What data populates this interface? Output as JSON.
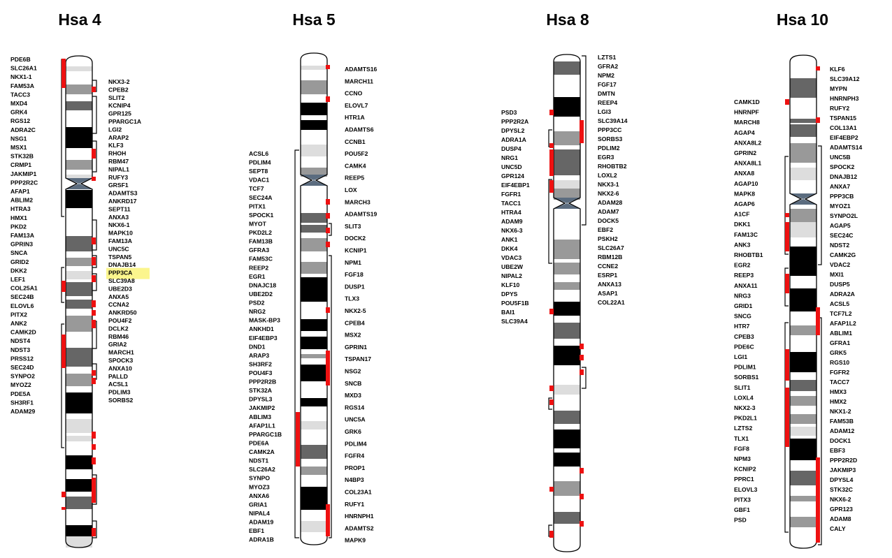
{
  "colors": {
    "marker": "#ee1111",
    "highlight": "#fbf58d",
    "band_black": "#000000",
    "band_dark": "#666666",
    "band_mid": "#999999",
    "band_light": "#dddddd",
    "centromere": "#5b6c7f"
  },
  "chromosomes": [
    {
      "title": "Hsa 4",
      "left_genes": [
        "PDE6B",
        "SLC26A1",
        "NKX1-1",
        "FAM53A",
        "TACC3",
        "MXD4",
        "GRK4",
        "RGS12",
        "ADRA2C",
        "NSG1",
        "MSX1",
        "STK32B",
        "CRMP1",
        "JAKMIP1",
        "PPP2R2C",
        "AFAP1",
        "ABLIM2",
        "HTRA3",
        "HMX1",
        "PKD2",
        "FAM13A",
        "GPRIN3",
        "SNCA",
        "GRID2",
        "DKK2",
        "LEF1",
        "COL25A1",
        "SEC24B",
        "ELOVL6",
        "PITX2",
        "ANK2",
        "CAMK2D",
        "NDST4",
        "NDST3",
        "PRSS12",
        "SEC24D",
        "SYNPO2",
        "MYOZ2",
        "PDE5A",
        "SH3RF1",
        "ADAM29"
      ],
      "right_genes": [
        "NKX3-2",
        "CPEB2",
        "SLIT2",
        "KCNIP4",
        "GPR125",
        "PPARGC1A",
        "LGI2",
        "ARAP2",
        "KLF3",
        "RHOH",
        "RBM47",
        "NIPAL1",
        "RUFY3",
        "GRSF1",
        "ADAMTS3",
        "ANKRD17",
        "SEPT11",
        "ANXA3",
        "NKX6-1",
        "MAPK10",
        "FAM13A",
        "UNC5C",
        "TSPAN5",
        "DNAJB14",
        "PPP3CA",
        "SLC39A8",
        "UBE2D3",
        "ANXA5",
        "CCNA2",
        "ANKRD50",
        "POU4F2",
        "DCLK2",
        "RBM46",
        "GRIA2",
        "MARCH1",
        "SPOCK3",
        "ANXA10",
        "PALLD",
        "ACSL1",
        "PDLIM3",
        "SORBS2"
      ],
      "highlighted_gene": "PPP3CA"
    },
    {
      "title": "Hsa 5",
      "left_genes": [
        "ACSL6",
        "PDLIM4",
        "SEPT8",
        "VDAC1",
        "TCF7",
        "SEC24A",
        "PITX1",
        "SPOCK1",
        "MYOT",
        "PKD2L2",
        "FAM13B",
        "GFRA3",
        "FAM53C",
        "REEP2",
        "EGR1",
        "DNAJC18",
        "UBE2D2",
        "PSD2",
        "NRG2",
        "MASK-BP3",
        "ANKHD1",
        "EIF4EBP3",
        "DND1",
        "ARAP3",
        "SH3RF2",
        "POU4F3",
        "PPP2R2B",
        "STK32A",
        "DPYSL3",
        "JAKMIP2",
        "ABLIM3",
        "AFAP1L1",
        "PPARGC1B",
        "PDE6A",
        "CAMK2A",
        "NDST1",
        "SLC26A2",
        "SYNPO",
        "MYOZ3",
        "ANXA6",
        "GRIA1",
        "NIPAL4",
        "ADAM19",
        "EBF1",
        "ADRA1B"
      ],
      "right_genes": [
        "ADAMTS16",
        "MARCH11",
        "CCNO",
        "ELOVL7",
        "HTR1A",
        "ADAMTS6",
        "CCNB1",
        "POU5F2",
        "CAMK4",
        "REEP5",
        "LOX",
        "MARCH3",
        "ADAMTS19",
        "SLIT3",
        "DOCK2",
        "KCNIP1",
        "NPM1",
        "FGF18",
        "DUSP1",
        "TLX3",
        "NKX2-5",
        "CPEB4",
        "MSX2",
        "GPRIN1",
        "TSPAN17",
        "NSG2",
        "SNCB",
        "MXD3",
        "RGS14",
        "UNC5A",
        "GRK6",
        "PDLIM4",
        "FGFR4",
        "PROP1",
        "N4BP3",
        "COL23A1",
        "RUFY1",
        "HNRNPH1",
        "ADAMTS2",
        "MAPK9"
      ]
    },
    {
      "title": "Hsa 8",
      "left_genes": [
        "PSD3",
        "PPP2R2A",
        "DPYSL2",
        "ADRA1A",
        "DUSP4",
        "NRG1",
        "UNC5D",
        "GPR124",
        "EIF4EBP1",
        "FGFR1",
        "TACC1",
        "HTRA4",
        "ADAM9",
        "NKX6-3",
        "ANK1",
        "DKK4",
        "VDAC3",
        "UBE2W",
        "NIPAL2",
        "KLF10",
        "DPYS",
        "POU5F1B",
        "BAI1",
        "SLC39A4"
      ],
      "right_genes": [
        "LZTS1",
        "GFRA2",
        "NPM2",
        "FGF17",
        "DMTN",
        "REEP4",
        "LGI3",
        "SLC39A14",
        "PPP3CC",
        "SORBS3",
        "PDLIM2",
        "EGR3",
        "RHOBTB2",
        "LOXL2",
        "NKX3-1",
        "NKX2-6",
        "ADAM28",
        "ADAM7",
        "DOCK5",
        "EBF2",
        "PSKH2",
        "SLC26A7",
        "RBM12B",
        "CCNE2",
        "ESRP1",
        "ANXA13",
        "ASAP1",
        "COL22A1"
      ]
    },
    {
      "title": "Hsa 10",
      "left_genes": [
        "CAMK1D",
        "HNRNPF",
        "MARCH8",
        "AGAP4",
        "ANXA8L2",
        "GPRIN2",
        "ANXA8L1",
        "ANXA8",
        "AGAP10",
        "MAPK8",
        "AGAP6",
        "A1CF",
        "DKK1",
        "FAM13C",
        "ANK3",
        "RHOBTB1",
        "EGR2",
        "REEP3",
        "ANXA11",
        "NRG3",
        "GRID1",
        "SNCG",
        "HTR7",
        "CPEB3",
        "PDE6C",
        "LGI1",
        "PDLIM1",
        "SORBS1",
        "SLIT1",
        "LOXL4",
        "NKX2-3",
        "PKD2L1",
        "LZTS2",
        "TLX1",
        "FGF8",
        "NPM3",
        "KCNIP2",
        "PPRC1",
        "ELOVL3",
        "PITX3",
        "GBF1",
        "PSD"
      ],
      "right_genes": [
        "KLF6",
        "SLC39A12",
        "MYPN",
        "HNRNPH3",
        "RUFY2",
        "TSPAN15",
        "COL13A1",
        "EIF4EBP2",
        "ADAMTS14",
        "UNC5B",
        "SPOCK2",
        "DNAJB12",
        "ANXA7",
        "PPP3CB",
        "MYOZ1",
        "SYNPO2L",
        "AGAP5",
        "SEC24C",
        "NDST2",
        "CAMK2G",
        "VDAC2",
        "MXI1",
        "DUSP5",
        "ADRA2A",
        "ACSL5",
        "TCF7L2",
        "AFAP1L2",
        "ABLIM1",
        "GFRA1",
        "GRK5",
        "RGS10",
        "FGFR2",
        "TACC7",
        "HMX3",
        "HMX2",
        "NKX1-2",
        "FAM53B",
        "ADAM12",
        "DOCK1",
        "EBF3",
        "PPP2R2D",
        "JAKMIP3",
        "DPYSL4",
        "STK32C",
        "NKX6-2",
        "GPR123",
        "ADAM8",
        "CALY"
      ]
    }
  ]
}
